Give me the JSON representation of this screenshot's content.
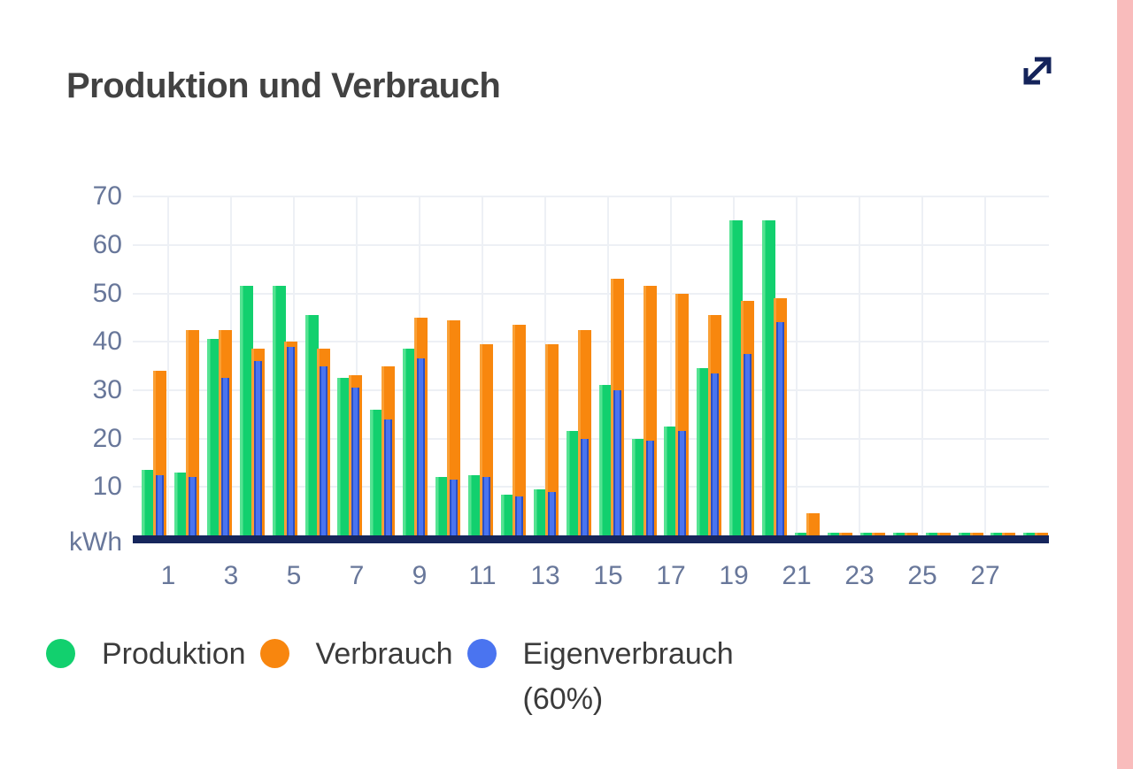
{
  "header": {
    "title": "Produktion und Verbrauch"
  },
  "y_axis": {
    "unit_label": "kWh",
    "ticks": [
      70,
      60,
      50,
      40,
      30,
      20,
      10
    ]
  },
  "x_axis": {
    "ticks": [
      1,
      3,
      5,
      7,
      9,
      11,
      13,
      15,
      17,
      19,
      21,
      23,
      25,
      27
    ]
  },
  "legend": {
    "items": [
      {
        "label": "Produktion",
        "color": "#12d06e"
      },
      {
        "label": "Verbrauch",
        "color": "#f8860e"
      },
      {
        "label": "Eigenverbrauch (60%)",
        "color": "#4a74f0"
      }
    ]
  },
  "colors": {
    "produktion": "#12d06e",
    "produktion_light": "#55e392",
    "verbrauch": "#f8870e",
    "verbrauch_light": "#faa035",
    "eigenverbrauch": "#4a74f0",
    "eigenverbrauch_border": "#2b50c6",
    "baseline": "#16265c",
    "grid": "#edf0f5",
    "axis_text": "#68779a",
    "title_text": "#424242",
    "legend_text": "#3b3b3b",
    "icon": "#14235a",
    "side_strip": "#f9bcbc"
  },
  "chart_data": {
    "type": "bar",
    "title": "Produktion und Verbrauch",
    "xlabel": "",
    "ylabel": "kWh",
    "ylim": [
      0,
      70
    ],
    "grid": true,
    "legend_position": "bottom",
    "categories": [
      1,
      2,
      3,
      4,
      5,
      6,
      7,
      8,
      9,
      10,
      11,
      12,
      13,
      14,
      15,
      16,
      17,
      18,
      19,
      20,
      21,
      22,
      23,
      24,
      25,
      26,
      27,
      28
    ],
    "series": [
      {
        "name": "Produktion",
        "color": "#12d06e",
        "values": [
          13.5,
          13,
          40.5,
          51.5,
          51.5,
          45.5,
          32.5,
          26,
          38.5,
          12,
          12.5,
          8.5,
          9.5,
          21.5,
          31,
          20,
          22.5,
          34.5,
          65,
          65,
          0.5,
          0.5,
          0.5,
          0.5,
          0.5,
          0.5,
          0.5,
          0.5
        ]
      },
      {
        "name": "Verbrauch",
        "color": "#f8870e",
        "values": [
          34,
          42.5,
          42.5,
          38.5,
          40,
          38.5,
          33,
          35,
          45,
          44.5,
          39.5,
          43.5,
          39.5,
          42.5,
          53,
          51.5,
          50,
          45.5,
          48.5,
          49,
          4.5,
          0.5,
          0.5,
          0.5,
          0.5,
          0.5,
          0.5,
          0.5
        ]
      },
      {
        "name": "Eigenverbrauch (60%)",
        "color": "#4a74f0",
        "values": [
          12.5,
          12,
          32.5,
          36,
          39,
          35,
          30.5,
          24,
          36.5,
          11.5,
          12,
          8,
          9,
          20,
          30,
          19.5,
          21.5,
          33.5,
          37.5,
          44,
          0,
          0,
          0,
          0,
          0,
          0,
          0,
          0
        ]
      }
    ]
  }
}
